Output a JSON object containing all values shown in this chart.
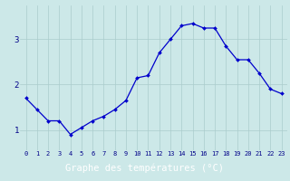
{
  "x": [
    0,
    1,
    2,
    3,
    4,
    5,
    6,
    7,
    8,
    9,
    10,
    11,
    12,
    13,
    14,
    15,
    16,
    17,
    18,
    19,
    20,
    21,
    22,
    23
  ],
  "y": [
    1.7,
    1.45,
    1.2,
    1.2,
    0.9,
    1.05,
    1.2,
    1.3,
    1.45,
    1.65,
    2.15,
    2.2,
    2.7,
    3.0,
    3.3,
    3.35,
    3.25,
    3.25,
    2.85,
    2.55,
    2.55,
    2.25,
    1.9,
    1.8
  ],
  "xlabel": "Graphe des températures (°C)",
  "yticks": [
    1,
    2,
    3
  ],
  "xtick_labels": [
    "0",
    "1",
    "2",
    "3",
    "4",
    "5",
    "6",
    "7",
    "8",
    "9",
    "10",
    "11",
    "12",
    "13",
    "14",
    "15",
    "16",
    "17",
    "18",
    "19",
    "20",
    "21",
    "22",
    "23"
  ],
  "line_color": "#0000cc",
  "marker": "D",
  "marker_size": 2.0,
  "bg_color": "#cce8e8",
  "grid_color": "#aacccc",
  "ylim": [
    0.55,
    3.75
  ],
  "xlim": [
    -0.5,
    23.5
  ],
  "label_bg_color": "#0000aa",
  "label_text_color": "#ffffff",
  "tick_label_color": "#000088",
  "ytick_label_color": "#000088"
}
